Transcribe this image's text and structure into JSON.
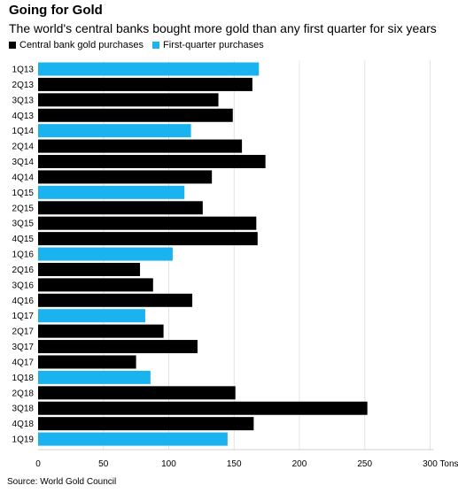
{
  "header": {
    "title": "Going for Gold",
    "subtitle": "The world's central banks bought more gold than any first quarter for six years"
  },
  "legend": [
    {
      "label": "Central bank gold purchases",
      "color": "#000000"
    },
    {
      "label": "First-quarter purchases",
      "color": "#1ab3f0"
    }
  ],
  "source": "Source: World Gold Council",
  "chart_data": {
    "type": "bar",
    "orientation": "horizontal",
    "title": "Going for Gold",
    "subtitle": "The world's central banks bought more gold than any first quarter for six years",
    "categories": [
      "1Q13",
      "2Q13",
      "3Q13",
      "4Q13",
      "1Q14",
      "2Q14",
      "3Q14",
      "4Q14",
      "1Q15",
      "2Q15",
      "3Q15",
      "4Q15",
      "1Q16",
      "2Q16",
      "3Q16",
      "4Q16",
      "1Q17",
      "2Q17",
      "3Q17",
      "4Q17",
      "1Q18",
      "2Q18",
      "3Q18",
      "4Q18",
      "1Q19"
    ],
    "values": [
      169,
      164,
      138,
      149,
      117,
      156,
      174,
      133,
      112,
      126,
      167,
      168,
      103,
      78,
      88,
      118,
      82,
      96,
      122,
      75,
      86,
      151,
      252,
      165,
      145
    ],
    "first_quarter": [
      true,
      false,
      false,
      false,
      true,
      false,
      false,
      false,
      true,
      false,
      false,
      false,
      true,
      false,
      false,
      false,
      true,
      false,
      false,
      false,
      true,
      false,
      false,
      false,
      true
    ],
    "series": [
      {
        "name": "Central bank gold purchases",
        "color": "#000000"
      },
      {
        "name": "First-quarter purchases",
        "color": "#1ab3f0"
      }
    ],
    "xticks": [
      0,
      50,
      100,
      150,
      200,
      250,
      300
    ],
    "xtick_labels": [
      "0",
      "50",
      "100",
      "150",
      "200",
      "250",
      "300 Tons"
    ],
    "xlim": [
      0,
      300
    ],
    "xlabel": "",
    "ylabel": "",
    "grid": true,
    "legend_position": "top-left"
  }
}
